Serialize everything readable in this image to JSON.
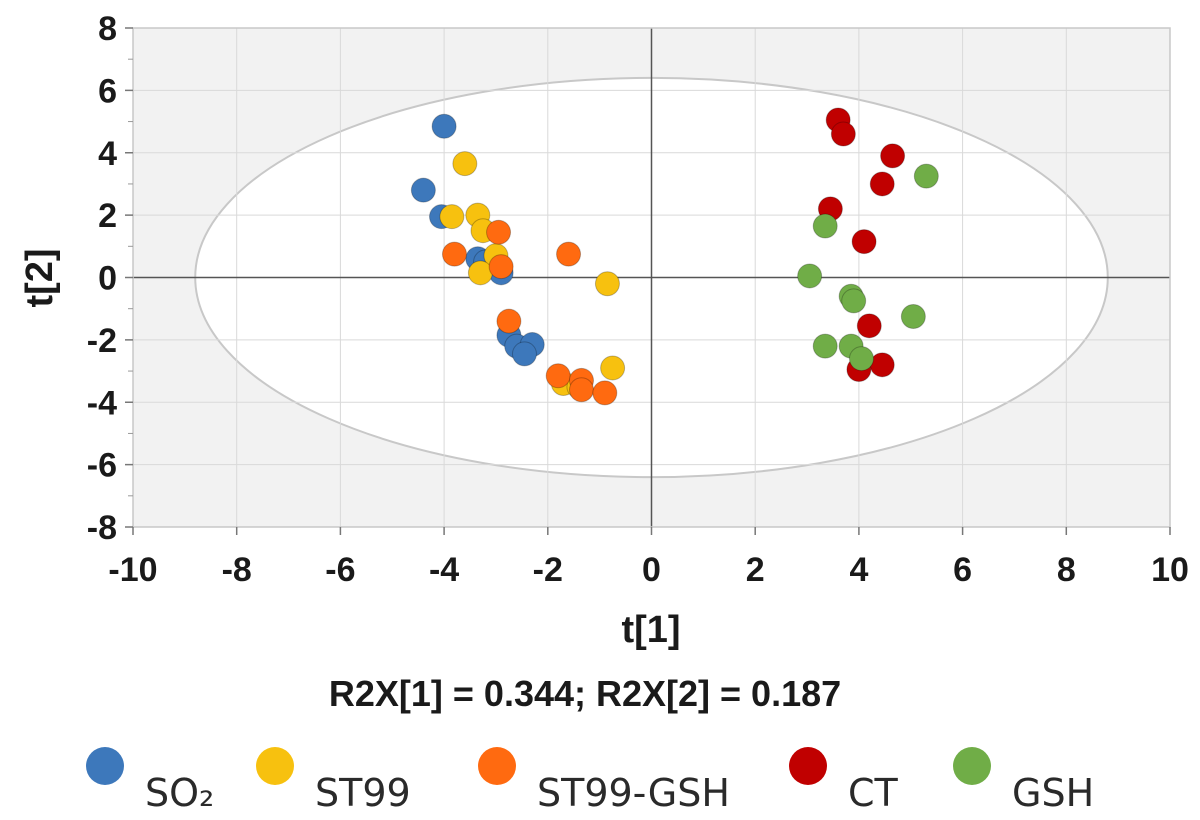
{
  "chart_data": {
    "type": "scatter",
    "xlabel": "t[1]",
    "ylabel": "t[2]",
    "xlim": [
      -10,
      10
    ],
    "ylim": [
      -8,
      8
    ],
    "x_ticks": [
      -10,
      -8,
      -6,
      -4,
      -2,
      0,
      2,
      4,
      6,
      8,
      10
    ],
    "y_ticks": [
      -8,
      -6,
      -4,
      -2,
      0,
      2,
      4,
      6,
      8
    ],
    "caption": "R2X[1] = 0.344; R2X[2] = 0.187",
    "grid": true,
    "legend_position": "bottom",
    "ellipse": {
      "rx": 8.8,
      "ry": 6.4,
      "center": [
        0,
        0
      ]
    },
    "series": [
      {
        "name": "SO₂",
        "color": "#3d78bb",
        "points": [
          [
            -4.0,
            4.85
          ],
          [
            -4.4,
            2.8
          ],
          [
            -4.05,
            1.95
          ],
          [
            -3.35,
            0.6
          ],
          [
            -3.2,
            0.5
          ],
          [
            -2.9,
            0.15
          ],
          [
            -2.75,
            -1.85
          ],
          [
            -2.6,
            -2.2
          ],
          [
            -2.3,
            -2.15
          ],
          [
            -2.45,
            -2.45
          ]
        ]
      },
      {
        "name": "ST99",
        "color": "#f7c10f",
        "points": [
          [
            -3.6,
            3.65
          ],
          [
            -3.85,
            1.95
          ],
          [
            -3.35,
            2.0
          ],
          [
            -3.25,
            1.5
          ],
          [
            -3.0,
            0.7
          ],
          [
            -3.3,
            0.15
          ],
          [
            -0.85,
            -0.2
          ],
          [
            -0.75,
            -2.9
          ],
          [
            -1.7,
            -3.4
          ],
          [
            -1.4,
            -3.5
          ]
        ]
      },
      {
        "name": "ST99-GSH",
        "color": "#ff6a10",
        "points": [
          [
            -2.95,
            1.45
          ],
          [
            -3.8,
            0.75
          ],
          [
            -2.9,
            0.35
          ],
          [
            -1.6,
            0.75
          ],
          [
            -2.75,
            -1.4
          ],
          [
            -1.8,
            -3.15
          ],
          [
            -1.35,
            -3.3
          ],
          [
            -1.35,
            -3.6
          ],
          [
            -0.9,
            -3.7
          ]
        ]
      },
      {
        "name": "CT",
        "color": "#c00000",
        "points": [
          [
            3.6,
            5.05
          ],
          [
            3.7,
            4.6
          ],
          [
            4.65,
            3.9
          ],
          [
            4.45,
            3.0
          ],
          [
            3.45,
            2.2
          ],
          [
            4.1,
            1.15
          ],
          [
            4.2,
            -1.55
          ],
          [
            4.45,
            -2.8
          ],
          [
            4.0,
            -2.95
          ]
        ]
      },
      {
        "name": "GSH",
        "color": "#70ad47",
        "points": [
          [
            5.3,
            3.25
          ],
          [
            3.35,
            1.65
          ],
          [
            3.05,
            0.05
          ],
          [
            3.85,
            -0.6
          ],
          [
            3.9,
            -0.75
          ],
          [
            5.05,
            -1.25
          ],
          [
            3.35,
            -2.2
          ],
          [
            3.85,
            -2.2
          ],
          [
            4.05,
            -2.6
          ]
        ]
      }
    ]
  }
}
